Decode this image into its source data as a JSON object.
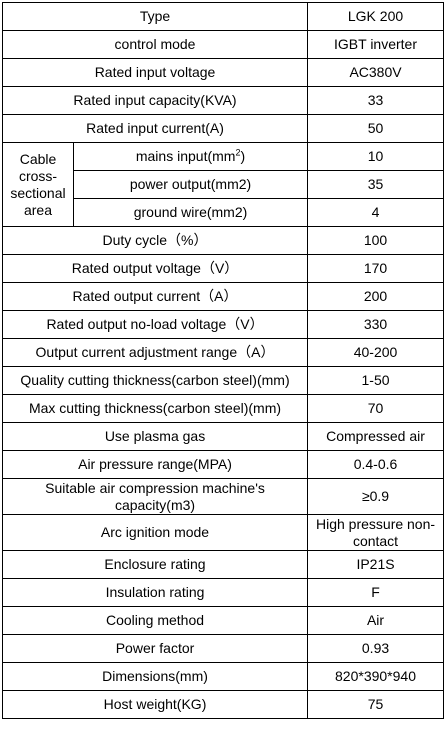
{
  "rows": [
    {
      "label": "Type",
      "value": "LGK 200"
    },
    {
      "label": "control mode",
      "value": "IGBT inverter"
    },
    {
      "label": "Rated input voltage",
      "value": "AC380V"
    },
    {
      "label": "Rated input capacity(KVA)",
      "value": "33"
    },
    {
      "label": "Rated input current(A)",
      "value": "50"
    }
  ],
  "cable": {
    "group_label": "Cable cross-sectional area",
    "items": [
      {
        "label_prefix": "mains input(mm",
        "label_sup": "2",
        "label_suffix": ")",
        "value": "10"
      },
      {
        "label": "power output(mm2)",
        "value": "35"
      },
      {
        "label": "ground wire(mm2)",
        "value": "4"
      }
    ]
  },
  "rows2": [
    {
      "label": "Duty cycle（%）",
      "value": "100"
    },
    {
      "label": "Rated output voltage（V）",
      "value": "170"
    },
    {
      "label": "Rated output current（A）",
      "value": "200"
    },
    {
      "label": "Rated output no-load voltage（V）",
      "value": "330"
    },
    {
      "label": "Output current adjustment range（A）",
      "value": "40-200"
    },
    {
      "label": "Quality cutting thickness(carbon steel)(mm)",
      "value": "1-50"
    },
    {
      "label": "Max cutting thickness(carbon steel)(mm)",
      "value": "70"
    },
    {
      "label": "Use plasma gas",
      "value": "Compressed air"
    },
    {
      "label": "Air pressure range(MPA)",
      "value": "0.4-0.6"
    },
    {
      "label": "Suitable air compression machine's capacity(m3)",
      "value": "≥0.9"
    },
    {
      "label": "Arc ignition mode",
      "value": "High pressure non-contact"
    },
    {
      "label": "Enclosure rating",
      "value": "IP21S"
    },
    {
      "label": "Insulation rating",
      "value": "F"
    },
    {
      "label": "Cooling method",
      "value": "Air"
    },
    {
      "label": "Power factor",
      "value": "0.93"
    },
    {
      "label": "Dimensions(mm)",
      "value": "820*390*940"
    },
    {
      "label": "Host weight(KG)",
      "value": "75"
    }
  ]
}
